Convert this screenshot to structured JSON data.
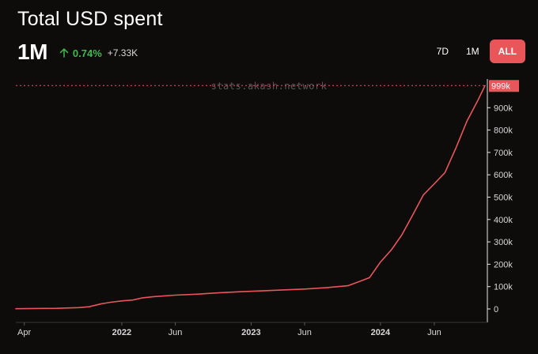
{
  "header": {
    "title": "Total USD spent",
    "big_value": "1M",
    "change_pct": "0.74%",
    "change_abs": "+7.33K",
    "up_icon": "arrow-up-icon"
  },
  "range_buttons": [
    "7D",
    "1M",
    "ALL"
  ],
  "active_range": "ALL",
  "watermark": "stats.akash.network",
  "colors": {
    "background": "#0e0b0b",
    "line": "#e9565a",
    "accent": "#e9565a",
    "positive": "#3fb950",
    "tick": "#d9d9d9"
  },
  "chart_data": {
    "type": "line",
    "title": "Total USD spent",
    "xlabel": "",
    "ylabel": "",
    "x_ticks": [
      {
        "label": "Apr",
        "date": "2021-04-01",
        "bold": false
      },
      {
        "label": "2022",
        "date": "2022-01-01",
        "bold": true
      },
      {
        "label": "Jun",
        "date": "2022-06-01",
        "bold": false
      },
      {
        "label": "2023",
        "date": "2023-01-01",
        "bold": true
      },
      {
        "label": "Jun",
        "date": "2023-06-01",
        "bold": false
      },
      {
        "label": "2024",
        "date": "2024-01-01",
        "bold": true
      },
      {
        "label": "Jun",
        "date": "2024-06-01",
        "bold": false
      }
    ],
    "y_ticks": [
      0,
      100000,
      200000,
      300000,
      400000,
      500000,
      600000,
      700000,
      800000,
      900000
    ],
    "y_tick_labels": [
      "0",
      "100k",
      "200k",
      "300k",
      "400k",
      "500k",
      "600k",
      "700k",
      "800k",
      "900k"
    ],
    "ylim": [
      0,
      1000000
    ],
    "xlim": [
      "2021-03-08",
      "2024-10-22"
    ],
    "current_value": 999000,
    "current_value_label": "999k",
    "grid": false,
    "series": [
      {
        "points": [
          [
            "2021-03-08",
            1000
          ],
          [
            "2021-05-01",
            2000
          ],
          [
            "2021-07-01",
            3000
          ],
          [
            "2021-09-01",
            6000
          ],
          [
            "2021-10-01",
            10000
          ],
          [
            "2021-11-01",
            22000
          ],
          [
            "2021-12-01",
            30000
          ],
          [
            "2022-01-01",
            36000
          ],
          [
            "2022-02-01",
            40000
          ],
          [
            "2022-03-01",
            50000
          ],
          [
            "2022-04-01",
            55000
          ],
          [
            "2022-06-01",
            62000
          ],
          [
            "2022-08-01",
            66000
          ],
          [
            "2022-10-01",
            72000
          ],
          [
            "2022-12-01",
            77000
          ],
          [
            "2023-02-01",
            81000
          ],
          [
            "2023-04-01",
            85000
          ],
          [
            "2023-06-01",
            89000
          ],
          [
            "2023-08-01",
            95000
          ],
          [
            "2023-10-01",
            104000
          ],
          [
            "2023-11-01",
            122000
          ],
          [
            "2023-12-01",
            140000
          ],
          [
            "2024-01-01",
            210000
          ],
          [
            "2024-02-01",
            265000
          ],
          [
            "2024-03-01",
            330000
          ],
          [
            "2024-04-01",
            420000
          ],
          [
            "2024-05-01",
            510000
          ],
          [
            "2024-06-01",
            560000
          ],
          [
            "2024-07-01",
            610000
          ],
          [
            "2024-08-01",
            720000
          ],
          [
            "2024-09-01",
            840000
          ],
          [
            "2024-10-01",
            930000
          ],
          [
            "2024-10-22",
            999000
          ]
        ]
      }
    ]
  }
}
